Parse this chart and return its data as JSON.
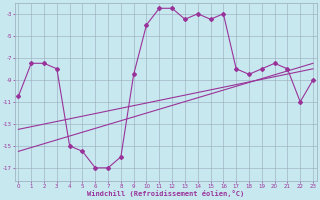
{
  "x": [
    0,
    1,
    2,
    3,
    4,
    5,
    6,
    7,
    8,
    9,
    10,
    11,
    12,
    13,
    14,
    15,
    16,
    17,
    18,
    19,
    20,
    21,
    22,
    23
  ],
  "windchill": [
    -10.5,
    -7.5,
    -7.5,
    -8.0,
    -15.0,
    -15.5,
    -17.0,
    -17.0,
    -16.0,
    -8.5,
    -4.0,
    -2.5,
    -2.5,
    -3.5,
    -3.0,
    -3.5,
    -3.0,
    -8.0,
    -8.5,
    -8.0,
    -7.5,
    -8.0,
    -11.0,
    -9.0
  ],
  "trend1_x": [
    0,
    23
  ],
  "trend1_y": [
    -13.5,
    -8.0
  ],
  "trend2_x": [
    0,
    23
  ],
  "trend2_y": [
    -15.5,
    -7.5
  ],
  "line_color": "#993399",
  "bg_color": "#c8e8f0",
  "grid_color": "#99aabb",
  "xlabel": "Windchill (Refroidissement éolien,°C)",
  "yticks": [
    -3,
    -5,
    -7,
    -9,
    -11,
    -13,
    -15,
    -17
  ],
  "xticks": [
    0,
    1,
    2,
    3,
    4,
    5,
    6,
    7,
    8,
    9,
    10,
    11,
    12,
    13,
    14,
    15,
    16,
    17,
    18,
    19,
    20,
    21,
    22,
    23
  ],
  "ylim": [
    -18.2,
    -2.0
  ],
  "xlim": [
    -0.3,
    23.3
  ],
  "marker": "D",
  "markersize": 2.0,
  "linewidth": 0.8
}
